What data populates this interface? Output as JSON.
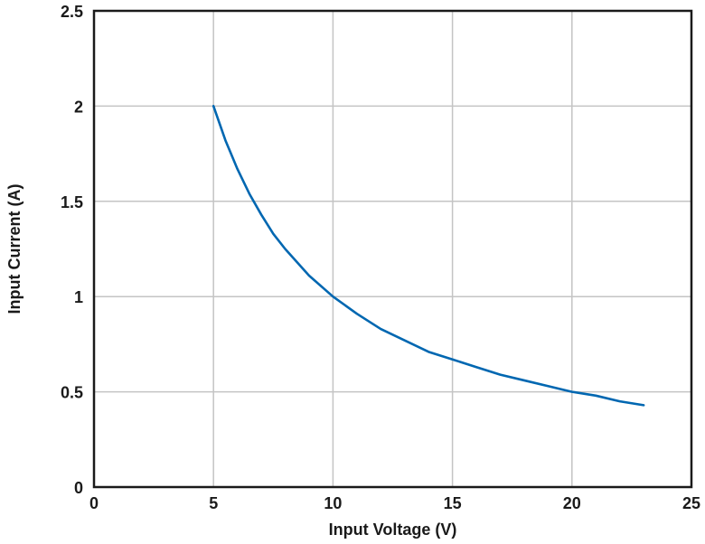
{
  "chart_data": {
    "type": "line",
    "title": "",
    "xlabel": "Input Voltage (V)",
    "ylabel": "Input Current (A)",
    "xlim": [
      0,
      25
    ],
    "ylim": [
      0,
      2.5
    ],
    "xticks": [
      0,
      5,
      10,
      15,
      20,
      25
    ],
    "xtick_labels": [
      "0",
      "5",
      "10",
      "15",
      "20",
      "25"
    ],
    "yticks": [
      0,
      0.5,
      1,
      1.5,
      2,
      2.5
    ],
    "ytick_labels": [
      "0",
      "0.5",
      "1",
      "1.5",
      "2",
      "2.5"
    ],
    "grid": true,
    "legend": "none",
    "series": [
      {
        "color": "#0067b1",
        "x": [
          5,
          5.5,
          6,
          6.5,
          7,
          7.5,
          8,
          9,
          10,
          11,
          12,
          13,
          14,
          15,
          16,
          17,
          18,
          19,
          20,
          21,
          22,
          23
        ],
        "y": [
          2.0,
          1.82,
          1.67,
          1.54,
          1.43,
          1.33,
          1.25,
          1.11,
          1.0,
          0.91,
          0.83,
          0.77,
          0.71,
          0.67,
          0.63,
          0.59,
          0.56,
          0.53,
          0.5,
          0.48,
          0.45,
          0.43
        ]
      }
    ]
  }
}
